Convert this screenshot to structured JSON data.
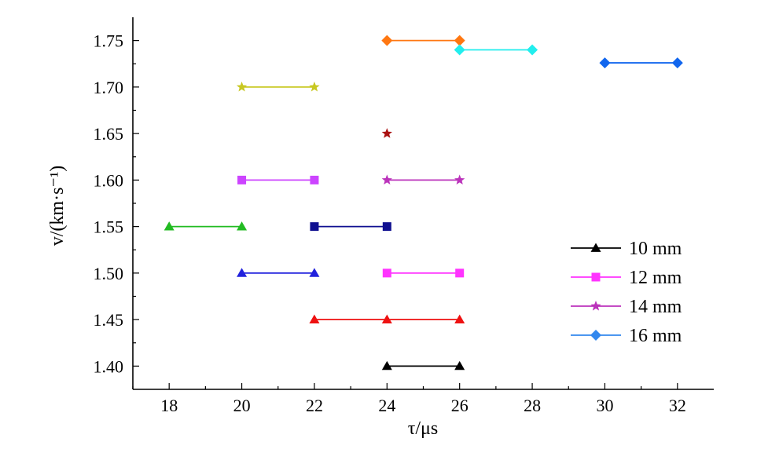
{
  "chart_data": {
    "type": "line",
    "title": "",
    "xlabel": "τ/μs",
    "ylabel": "v/(km·s⁻¹)",
    "xlim": [
      17,
      33
    ],
    "ylim": [
      1.375,
      1.775
    ],
    "xticks": [
      18,
      20,
      22,
      24,
      26,
      28,
      30,
      32
    ],
    "yticks": [
      1.4,
      1.45,
      1.5,
      1.55,
      1.6,
      1.65,
      1.7,
      1.75
    ],
    "ytick_labels": [
      "1.40",
      "1.45",
      "1.50",
      "1.55",
      "1.60",
      "1.65",
      "1.70",
      "1.75"
    ],
    "grid": false,
    "legend": {
      "position": "bottom-right",
      "entries": [
        {
          "label": "10 mm",
          "color": "#000000",
          "marker": "triangle"
        },
        {
          "label": "12 mm",
          "color": "#ff33ff",
          "marker": "square"
        },
        {
          "label": "14 mm",
          "color": "#bb33bb",
          "marker": "star"
        },
        {
          "label": "16 mm",
          "color": "#3388ee",
          "marker": "diamond"
        }
      ]
    },
    "segments": [
      {
        "x": [
          24,
          26
        ],
        "y": [
          1.4,
          1.4
        ],
        "color": "#000000",
        "marker": "triangle"
      },
      {
        "x": [
          22,
          24,
          26
        ],
        "y": [
          1.45,
          1.45,
          1.45
        ],
        "color": "#ee1111",
        "marker": "triangle"
      },
      {
        "x": [
          20,
          22
        ],
        "y": [
          1.5,
          1.5
        ],
        "color": "#2222dd",
        "marker": "triangle"
      },
      {
        "x": [
          18,
          20
        ],
        "y": [
          1.55,
          1.55
        ],
        "color": "#22bb22",
        "marker": "triangle"
      },
      {
        "x": [
          24,
          26
        ],
        "y": [
          1.5,
          1.5
        ],
        "color": "#ff33ff",
        "marker": "square"
      },
      {
        "x": [
          22,
          24
        ],
        "y": [
          1.55,
          1.55
        ],
        "color": "#101090",
        "marker": "square"
      },
      {
        "x": [
          20,
          22
        ],
        "y": [
          1.6,
          1.6
        ],
        "color": "#cc44ff",
        "marker": "square"
      },
      {
        "x": [
          24,
          26
        ],
        "y": [
          1.6,
          1.6
        ],
        "color": "#bb33bb",
        "marker": "star"
      },
      {
        "x": [
          24
        ],
        "y": [
          1.65
        ],
        "color": "#aa1111",
        "marker": "star"
      },
      {
        "x": [
          20,
          22
        ],
        "y": [
          1.7,
          1.7
        ],
        "color": "#c8c822",
        "marker": "star"
      },
      {
        "x": [
          24,
          26
        ],
        "y": [
          1.75,
          1.75
        ],
        "color": "#ff7711",
        "marker": "diamond"
      },
      {
        "x": [
          26,
          28
        ],
        "y": [
          1.74,
          1.74
        ],
        "color": "#22eeee",
        "marker": "diamond"
      },
      {
        "x": [
          30,
          32
        ],
        "y": [
          1.726,
          1.726
        ],
        "color": "#1166ee",
        "marker": "diamond"
      }
    ]
  }
}
